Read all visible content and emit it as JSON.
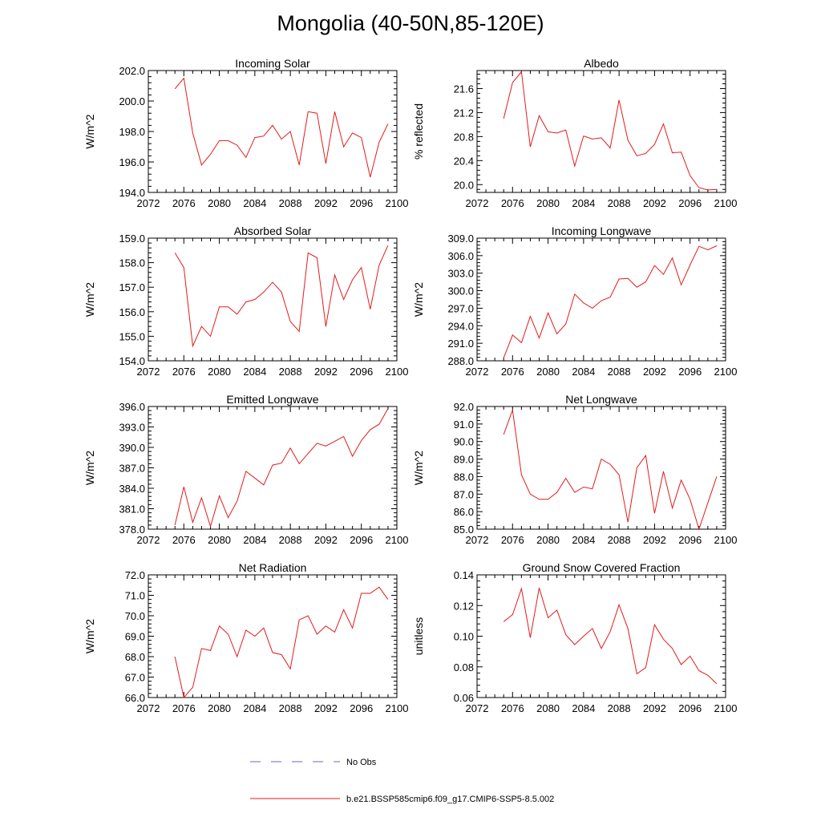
{
  "title": "Mongolia (40-50N,85-120E)",
  "legend": {
    "obs_label": "No Obs",
    "obs_color": "#6666cc",
    "model_label": "b.e21.BSSP585cmip6.f09_g17.CMIP6-SSP5-8.5.002",
    "model_color": "#e41a1c"
  },
  "chart_data": [
    {
      "type": "line",
      "title": "Incoming Solar",
      "ylabel": "W/m^2",
      "xlim": [
        2072,
        2100
      ],
      "ylim": [
        194.0,
        202.0
      ],
      "xticks": [
        2072,
        2076,
        2080,
        2084,
        2088,
        2092,
        2096,
        2100
      ],
      "yticks": [
        194.0,
        196.0,
        198.0,
        200.0,
        202.0
      ],
      "ydecimals": 1,
      "series": [
        {
          "x": [
            2075,
            2076,
            2077,
            2078,
            2079,
            2080,
            2081,
            2082,
            2083,
            2084,
            2085,
            2086,
            2087,
            2088,
            2089,
            2090,
            2091,
            2092,
            2093,
            2094,
            2095,
            2096,
            2097,
            2098,
            2099
          ],
          "values": [
            200.8,
            201.5,
            197.9,
            195.8,
            196.5,
            197.4,
            197.4,
            197.1,
            196.3,
            197.6,
            197.7,
            198.4,
            197.5,
            198.0,
            195.8,
            199.3,
            199.2,
            195.9,
            199.3,
            197.0,
            197.9,
            197.6,
            195.0,
            197.3,
            198.5
          ]
        }
      ]
    },
    {
      "type": "line",
      "title": "Albedo",
      "ylabel": "% reflected",
      "xlim": [
        2072,
        2100
      ],
      "ylim": [
        19.87,
        21.9
      ],
      "xticks": [
        2072,
        2076,
        2080,
        2084,
        2088,
        2092,
        2096,
        2100
      ],
      "yticks": [
        20.0,
        20.4,
        20.8,
        21.2,
        21.6
      ],
      "ydecimals": 1,
      "series": [
        {
          "x": [
            2075,
            2076,
            2077,
            2078,
            2079,
            2080,
            2081,
            2082,
            2083,
            2084,
            2085,
            2086,
            2087,
            2088,
            2089,
            2090,
            2091,
            2092,
            2093,
            2094,
            2095,
            2096,
            2097,
            2098,
            2099
          ],
          "values": [
            21.1,
            21.7,
            21.88,
            20.63,
            21.15,
            20.88,
            20.86,
            20.91,
            20.31,
            20.81,
            20.76,
            20.78,
            20.61,
            21.41,
            20.74,
            20.48,
            20.52,
            20.67,
            21.01,
            20.53,
            20.54,
            20.15,
            19.95,
            19.91,
            19.92
          ]
        }
      ]
    },
    {
      "type": "line",
      "title": "Absorbed Solar",
      "ylabel": "W/m^2",
      "xlim": [
        2072,
        2100
      ],
      "ylim": [
        154.0,
        159.0
      ],
      "xticks": [
        2072,
        2076,
        2080,
        2084,
        2088,
        2092,
        2096,
        2100
      ],
      "yticks": [
        154.0,
        155.0,
        156.0,
        157.0,
        158.0,
        159.0
      ],
      "ydecimals": 1,
      "series": [
        {
          "x": [
            2075,
            2076,
            2077,
            2078,
            2079,
            2080,
            2081,
            2082,
            2083,
            2084,
            2085,
            2086,
            2087,
            2088,
            2089,
            2090,
            2091,
            2092,
            2093,
            2094,
            2095,
            2096,
            2097,
            2098,
            2099
          ],
          "values": [
            158.4,
            157.8,
            154.6,
            155.4,
            155.0,
            156.2,
            156.2,
            155.9,
            156.4,
            156.5,
            156.8,
            157.2,
            156.8,
            155.6,
            155.2,
            158.4,
            158.2,
            155.4,
            157.5,
            156.5,
            157.3,
            157.8,
            156.1,
            157.9,
            158.7
          ]
        }
      ]
    },
    {
      "type": "line",
      "title": "Incoming Longwave",
      "ylabel": "W/m^2",
      "xlim": [
        2072,
        2100
      ],
      "ylim": [
        288.0,
        309.0
      ],
      "xticks": [
        2072,
        2076,
        2080,
        2084,
        2088,
        2092,
        2096,
        2100
      ],
      "yticks": [
        288.0,
        291.0,
        294.0,
        297.0,
        300.0,
        303.0,
        306.0,
        309.0
      ],
      "ydecimals": 1,
      "series": [
        {
          "x": [
            2075,
            2076,
            2077,
            2078,
            2079,
            2080,
            2081,
            2082,
            2083,
            2084,
            2085,
            2086,
            2087,
            2088,
            2089,
            2090,
            2091,
            2092,
            2093,
            2094,
            2095,
            2096,
            2097,
            2098,
            2099
          ],
          "values": [
            288.5,
            292.4,
            291.1,
            295.6,
            291.9,
            296.2,
            292.6,
            294.3,
            299.4,
            297.9,
            297.0,
            298.3,
            298.9,
            302.0,
            302.1,
            300.6,
            301.5,
            304.3,
            302.8,
            305.6,
            301.0,
            304.4,
            307.6,
            307.0,
            307.7
          ]
        }
      ]
    },
    {
      "type": "line",
      "title": "Emitted Longwave",
      "ylabel": "W/m^2",
      "xlim": [
        2072,
        2100
      ],
      "ylim": [
        378.0,
        396.0
      ],
      "xticks": [
        2072,
        2076,
        2080,
        2084,
        2088,
        2092,
        2096,
        2100
      ],
      "yticks": [
        378.0,
        381.0,
        384.0,
        387.0,
        390.0,
        393.0,
        396.0
      ],
      "ydecimals": 1,
      "series": [
        {
          "x": [
            2075,
            2076,
            2077,
            2078,
            2079,
            2080,
            2081,
            2082,
            2083,
            2084,
            2085,
            2086,
            2087,
            2088,
            2089,
            2090,
            2091,
            2092,
            2093,
            2094,
            2095,
            2096,
            2097,
            2098,
            2099
          ],
          "values": [
            378.6,
            384.2,
            379.0,
            382.6,
            378.4,
            382.9,
            379.7,
            382.1,
            386.5,
            385.5,
            384.5,
            387.4,
            387.7,
            389.9,
            387.6,
            389.1,
            390.6,
            390.2,
            390.9,
            391.6,
            388.7,
            391.0,
            392.6,
            393.4,
            395.7
          ]
        }
      ]
    },
    {
      "type": "line",
      "title": "Net Longwave",
      "ylabel": "W/m^2",
      "xlim": [
        2072,
        2100
      ],
      "ylim": [
        85.0,
        92.0
      ],
      "xticks": [
        2072,
        2076,
        2080,
        2084,
        2088,
        2092,
        2096,
        2100
      ],
      "yticks": [
        85.0,
        86.0,
        87.0,
        88.0,
        89.0,
        90.0,
        91.0,
        92.0
      ],
      "ydecimals": 1,
      "series": [
        {
          "x": [
            2075,
            2076,
            2077,
            2078,
            2079,
            2080,
            2081,
            2082,
            2083,
            2084,
            2085,
            2086,
            2087,
            2088,
            2089,
            2090,
            2091,
            2092,
            2093,
            2094,
            2095,
            2096,
            2097,
            2098,
            2099
          ],
          "values": [
            90.4,
            91.8,
            88.1,
            87.0,
            86.7,
            86.7,
            87.1,
            87.9,
            87.1,
            87.4,
            87.3,
            89.0,
            88.7,
            88.1,
            85.4,
            88.5,
            89.2,
            85.9,
            88.3,
            86.2,
            87.8,
            86.7,
            85.0,
            86.5,
            88.0
          ]
        }
      ]
    },
    {
      "type": "line",
      "title": "Net Radiation",
      "ylabel": "W/m^2",
      "xlim": [
        2072,
        2100
      ],
      "ylim": [
        66.0,
        72.0
      ],
      "xticks": [
        2072,
        2076,
        2080,
        2084,
        2088,
        2092,
        2096,
        2100
      ],
      "yticks": [
        66.0,
        67.0,
        68.0,
        69.0,
        70.0,
        71.0,
        72.0
      ],
      "ydecimals": 1,
      "series": [
        {
          "x": [
            2075,
            2076,
            2077,
            2078,
            2079,
            2080,
            2081,
            2082,
            2083,
            2084,
            2085,
            2086,
            2087,
            2088,
            2089,
            2090,
            2091,
            2092,
            2093,
            2094,
            2095,
            2096,
            2097,
            2098,
            2099
          ],
          "values": [
            68.0,
            66.0,
            66.5,
            68.4,
            68.3,
            69.5,
            69.1,
            68.0,
            69.3,
            69.0,
            69.4,
            68.2,
            68.1,
            67.4,
            69.8,
            70.0,
            69.1,
            69.5,
            69.2,
            70.3,
            69.4,
            71.1,
            71.1,
            71.4,
            70.8
          ]
        }
      ]
    },
    {
      "type": "line",
      "title": "Ground Snow Covered Fraction",
      "ylabel": "unitless",
      "xlim": [
        2072,
        2100
      ],
      "ylim": [
        0.06,
        0.14
      ],
      "xticks": [
        2072,
        2076,
        2080,
        2084,
        2088,
        2092,
        2096,
        2100
      ],
      "yticks": [
        0.06,
        0.08,
        0.1,
        0.12,
        0.14
      ],
      "ydecimals": 2,
      "series": [
        {
          "x": [
            2075,
            2076,
            2077,
            2078,
            2079,
            2080,
            2081,
            2082,
            2083,
            2084,
            2085,
            2086,
            2087,
            2088,
            2089,
            2090,
            2091,
            2092,
            2093,
            2094,
            2095,
            2096,
            2097,
            2098,
            2099
          ],
          "values": [
            0.1095,
            0.114,
            0.131,
            0.099,
            0.1315,
            0.112,
            0.117,
            0.101,
            0.0945,
            0.1,
            0.105,
            0.092,
            0.103,
            0.1205,
            0.105,
            0.0755,
            0.0795,
            0.1075,
            0.098,
            0.092,
            0.0815,
            0.087,
            0.0775,
            0.0745,
            0.069
          ]
        }
      ]
    }
  ]
}
